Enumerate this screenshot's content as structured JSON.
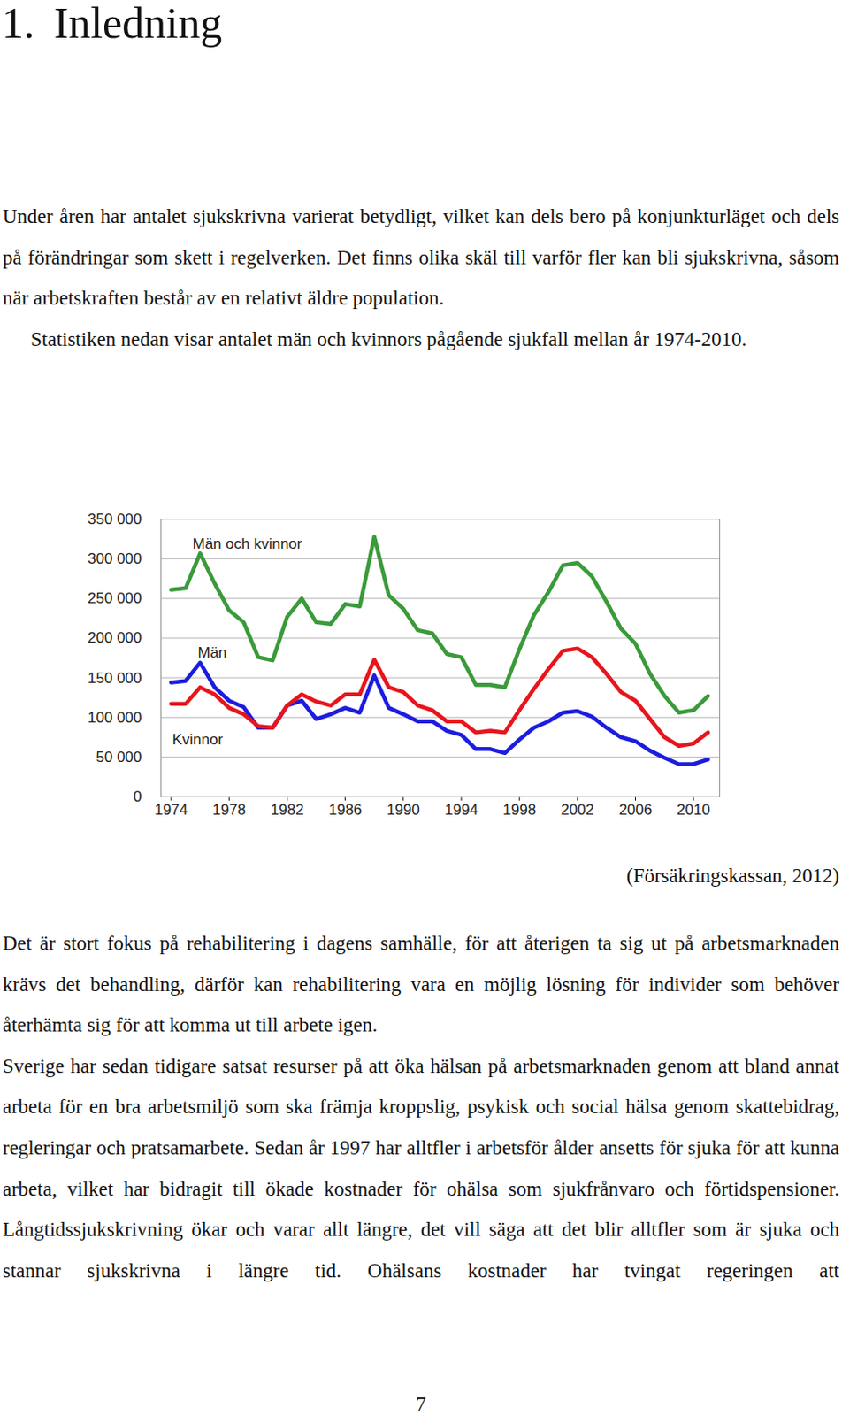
{
  "heading": {
    "number": "1.",
    "title": "Inledning"
  },
  "paragraphs_before": [
    "Under åren har antalet sjukskrivna varierat betydligt, vilket kan dels bero på konjunkturläget och dels på förändringar som skett i regelverken. Det finns olika skäl till varför fler kan bli sjukskrivna, såsom när arbetskraften består av en relativt äldre population.",
    "Statistiken nedan visar antalet män och kvinnors pågående sjukfall mellan år 1974-2010."
  ],
  "chart_data": {
    "type": "line",
    "x": [
      1974,
      1975,
      1976,
      1977,
      1978,
      1979,
      1980,
      1981,
      1982,
      1983,
      1984,
      1985,
      1986,
      1987,
      1988,
      1989,
      1990,
      1991,
      1992,
      1993,
      1994,
      1995,
      1996,
      1997,
      1998,
      1999,
      2000,
      2001,
      2002,
      2003,
      2004,
      2005,
      2006,
      2007,
      2008,
      2009,
      2010,
      2011
    ],
    "series": [
      {
        "name": "Män och kvinnor",
        "color": "#3a9a3a",
        "values": [
          261000,
          263000,
          307000,
          269000,
          235000,
          220000,
          176000,
          172000,
          227000,
          250000,
          220000,
          218000,
          243000,
          240000,
          328000,
          254000,
          237000,
          210000,
          206000,
          180000,
          176000,
          141000,
          141000,
          138000,
          186000,
          229000,
          258000,
          292000,
          295000,
          278000,
          246000,
          212000,
          193000,
          155000,
          127000,
          106000,
          109000,
          127000
        ]
      },
      {
        "name": "Män",
        "color": "#1c1ce0",
        "values": [
          144000,
          146000,
          169000,
          138000,
          121000,
          113000,
          87000,
          87000,
          115000,
          121000,
          98000,
          104000,
          112000,
          106000,
          153000,
          112000,
          104000,
          95000,
          95000,
          83000,
          78000,
          60000,
          60000,
          55000,
          72000,
          87000,
          95000,
          106000,
          108000,
          101000,
          87000,
          75000,
          70000,
          58000,
          49000,
          41000,
          41000,
          47000
        ]
      },
      {
        "name": "Kvinnor",
        "color": "#e8141c",
        "values": [
          117000,
          117000,
          138000,
          129000,
          112000,
          104000,
          89000,
          87000,
          115000,
          129000,
          120000,
          115000,
          129000,
          129000,
          173000,
          138000,
          132000,
          115000,
          109000,
          95000,
          95000,
          81000,
          83000,
          81000,
          109000,
          136000,
          161000,
          184000,
          187000,
          176000,
          155000,
          132000,
          121000,
          98000,
          75000,
          64000,
          67000,
          81000
        ]
      }
    ],
    "xlim": [
      1973.3,
      2011.8
    ],
    "xticks": [
      1974,
      1978,
      1982,
      1986,
      1990,
      1994,
      1998,
      2002,
      2006,
      2010
    ],
    "ylim": [
      0,
      350000
    ],
    "yticks": [
      0,
      {
        "value": 50000,
        "label": "50 000"
      },
      {
        "value": 100000,
        "label": "100 000"
      },
      {
        "value": 150000,
        "label": "150 000"
      },
      {
        "value": 200000,
        "label": "200 000"
      },
      {
        "value": 250000,
        "label": "250 000"
      },
      {
        "value": 300000,
        "label": "300 000"
      },
      {
        "value": 350000,
        "label": "350 000"
      }
    ],
    "grid": true
  },
  "source": "(Försäkringskassan, 2012)",
  "paragraphs_after": [
    "Det är stort fokus på rehabilitering i dagens samhälle, för att återigen ta sig ut på arbetsmarknaden krävs det behandling, därför kan rehabilitering vara en möjlig lösning för individer som behöver återhämta sig för att komma ut till arbete igen.",
    "Sverige har sedan tidigare satsat resurser på att öka hälsan på arbetsmarknaden genom att bland annat arbeta för en bra arbetsmiljö som ska främja kroppslig, psykisk och social hälsa genom skattebidrag, regleringar och pratsamarbete. Sedan år 1997 har alltfler i arbetsför ålder ansetts för sjuka för att kunna arbeta, vilket har bidragit till ökade kostnader för ohälsa som sjukfrånvaro och förtidspensioner. Långtidssjukskrivning ökar och varar allt längre, det vill säga att det blir alltfler som är sjuka och stannar sjukskrivna i längre tid. Ohälsans kostnader har tvingat regeringen att"
  ],
  "page_number": "7"
}
